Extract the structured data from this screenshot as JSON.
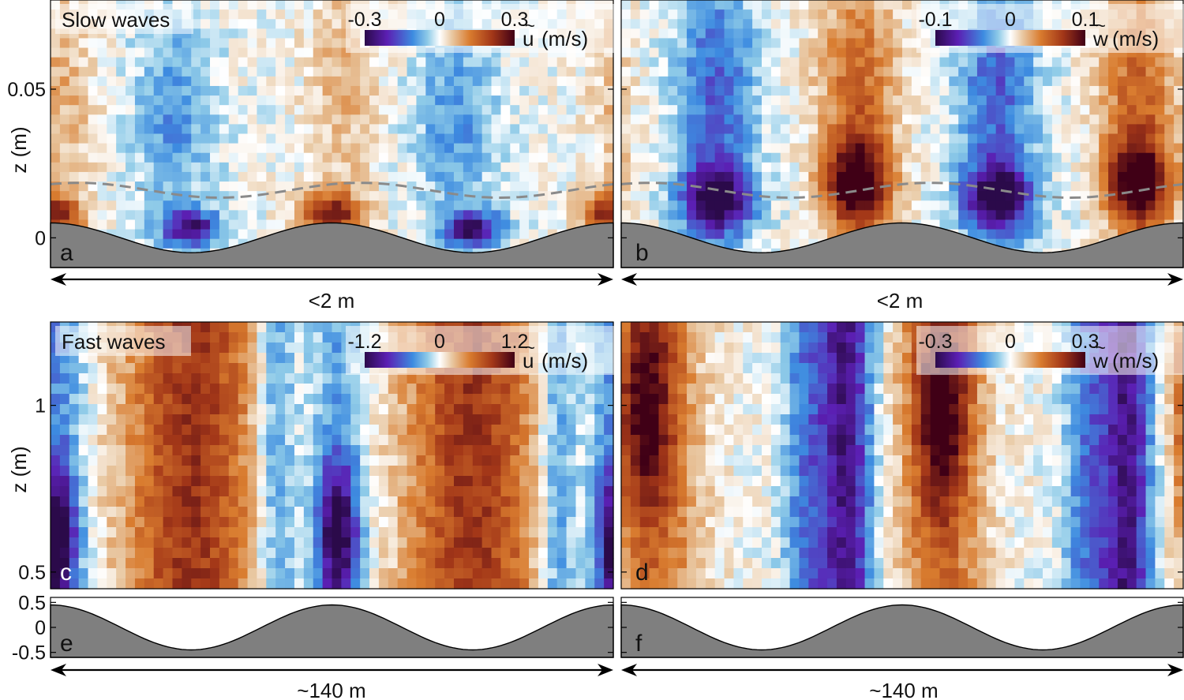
{
  "chart_data": [
    {
      "id": "a",
      "type": "heatmap",
      "panel_label": "a",
      "title": "Slow waves",
      "quantity": "u",
      "colorbar": {
        "min": -0.3,
        "max": 0.3,
        "ticks": [
          "-0.3",
          "0",
          "0.3"
        ],
        "label": "(m/s)"
      },
      "ylabel": "z (m)",
      "ylim": [
        -0.01,
        0.08
      ],
      "yticks": [
        {
          "v": 0,
          "label": "0"
        },
        {
          "v": 0.05,
          "label": "0.05"
        }
      ],
      "xlabel": "<2 m",
      "bed_amplitude": 0.005,
      "bed_phase": 0.0,
      "dashed_line": {
        "base": 0.016,
        "amplitude": 0.0025,
        "phase": 0.05
      },
      "cols": 60,
      "rows": 28,
      "phases": [
        0.0,
        0.05,
        0.5,
        0.55
      ],
      "modes": [
        {
          "phase": 0.0,
          "amp": 0.24,
          "zc": 0.008,
          "w": 0.007,
          "kind": "blob",
          "pw": 0.055
        },
        {
          "phase": 0.5,
          "amp": 0.24,
          "zc": 0.008,
          "w": 0.007,
          "kind": "blob",
          "pw": 0.055
        },
        {
          "phase": 0.25,
          "amp": -0.26,
          "zc": 0.003,
          "w": 0.006,
          "kind": "blob",
          "pw": 0.05
        },
        {
          "phase": 0.75,
          "amp": -0.26,
          "zc": 0.003,
          "w": 0.006,
          "kind": "blob",
          "pw": 0.05
        },
        {
          "phase": 0.22,
          "amp": -0.1,
          "zc": 0.04,
          "w": 0.035,
          "kind": "blob",
          "pw": 0.07
        },
        {
          "phase": 0.72,
          "amp": -0.1,
          "zc": 0.04,
          "w": 0.035,
          "kind": "blob",
          "pw": 0.07
        },
        {
          "phase": 0.02,
          "amp": 0.07,
          "zc": 0.05,
          "w": 0.04,
          "kind": "blob",
          "pw": 0.06
        },
        {
          "phase": 0.52,
          "amp": 0.07,
          "zc": 0.05,
          "w": 0.04,
          "kind": "blob",
          "pw": 0.06
        }
      ]
    },
    {
      "id": "b",
      "type": "heatmap",
      "panel_label": "b",
      "title": "",
      "quantity": "w",
      "colorbar": {
        "min": -0.1,
        "max": 0.1,
        "ticks": [
          "-0.1",
          "0",
          "0.1"
        ],
        "label": "(m/s)"
      },
      "ylabel": "",
      "ylim": [
        -0.01,
        0.08
      ],
      "yticks": [
        {
          "v": 0,
          "label": ""
        },
        {
          "v": 0.05,
          "label": ""
        }
      ],
      "xlabel": "<2 m",
      "bed_amplitude": 0.005,
      "bed_phase": 0.0,
      "dashed_line": {
        "base": 0.016,
        "amplitude": 0.0025,
        "phase": 0.05
      },
      "cols": 60,
      "rows": 28,
      "modes": [
        {
          "phase": 0.17,
          "amp": -0.1,
          "zc": 0.013,
          "w": 0.012,
          "kind": "blob",
          "pw": 0.06
        },
        {
          "phase": 0.67,
          "amp": -0.1,
          "zc": 0.013,
          "w": 0.012,
          "kind": "blob",
          "pw": 0.06
        },
        {
          "phase": 0.42,
          "amp": 0.1,
          "zc": 0.018,
          "w": 0.015,
          "kind": "blob",
          "pw": 0.055
        },
        {
          "phase": 0.92,
          "amp": 0.1,
          "zc": 0.018,
          "w": 0.015,
          "kind": "blob",
          "pw": 0.055
        },
        {
          "phase": 0.17,
          "amp": -0.05,
          "zc": 0.05,
          "w": 0.04,
          "kind": "blob",
          "pw": 0.07
        },
        {
          "phase": 0.67,
          "amp": -0.05,
          "zc": 0.05,
          "w": 0.04,
          "kind": "blob",
          "pw": 0.07
        },
        {
          "phase": 0.42,
          "amp": 0.05,
          "zc": 0.05,
          "w": 0.04,
          "kind": "blob",
          "pw": 0.07
        },
        {
          "phase": 0.92,
          "amp": 0.05,
          "zc": 0.05,
          "w": 0.04,
          "kind": "blob",
          "pw": 0.07
        }
      ]
    },
    {
      "id": "c",
      "type": "heatmap",
      "panel_label": "c",
      "title": "Fast waves",
      "quantity": "u",
      "colorbar": {
        "min": -1.2,
        "max": 1.2,
        "ticks": [
          "-1.2",
          "0",
          "1.2"
        ],
        "label": "(m/s)"
      },
      "ylabel": "z (m)",
      "ylim": [
        0.45,
        1.25
      ],
      "yticks": [
        {
          "v": 0.5,
          "label": "0.5"
        },
        {
          "v": 1,
          "label": "1"
        }
      ],
      "xlabel": "~140 m",
      "cols": 60,
      "rows": 26,
      "modes": [
        {
          "phase": 0.25,
          "amp": 0.85,
          "kind": "band",
          "pw": 0.12
        },
        {
          "phase": 0.75,
          "amp": 0.85,
          "kind": "band",
          "pw": 0.12
        },
        {
          "phase": 0.51,
          "amp": -1.05,
          "kind": "band",
          "pw": 0.035,
          "zc": 0.62,
          "w": 0.2
        },
        {
          "phase": 0.01,
          "amp": -1.1,
          "kind": "band",
          "pw": 0.035,
          "zc": 0.6,
          "w": 0.2
        },
        {
          "phase": 0.51,
          "amp": -0.35,
          "kind": "band",
          "pw": 0.05
        },
        {
          "phase": 0.01,
          "amp": -0.45,
          "kind": "band",
          "pw": 0.05
        },
        {
          "phase": 0.4,
          "amp": -0.45,
          "kind": "band",
          "pw": 0.035
        },
        {
          "phase": 0.9,
          "amp": -0.45,
          "kind": "band",
          "pw": 0.035
        }
      ]
    },
    {
      "id": "d",
      "type": "heatmap",
      "panel_label": "d",
      "title": "",
      "quantity": "w",
      "colorbar": {
        "min": -0.3,
        "max": 0.3,
        "ticks": [
          "-0.3",
          "0",
          "0.3"
        ],
        "label": "(m/s)"
      },
      "ylabel": "",
      "ylim": [
        0.45,
        1.25
      ],
      "yticks": [
        {
          "v": 0.5,
          "label": ""
        },
        {
          "v": 1,
          "label": ""
        }
      ],
      "xlabel": "~140 m",
      "cols": 60,
      "rows": 26,
      "modes": [
        {
          "phase": 0.04,
          "amp": 0.22,
          "kind": "band",
          "pw": 0.05,
          "zc": 1.0,
          "w": 0.35
        },
        {
          "phase": 0.57,
          "amp": 0.22,
          "kind": "band",
          "pw": 0.05,
          "zc": 1.0,
          "w": 0.35
        },
        {
          "phase": 0.07,
          "amp": 0.12,
          "kind": "band",
          "pw": 0.08
        },
        {
          "phase": 0.57,
          "amp": 0.12,
          "kind": "band",
          "pw": 0.08
        },
        {
          "phase": 0.4,
          "amp": -0.25,
          "kind": "band",
          "pw": 0.045
        },
        {
          "phase": 0.9,
          "amp": -0.25,
          "kind": "band",
          "pw": 0.045
        },
        {
          "phase": 0.33,
          "amp": -0.12,
          "kind": "band",
          "pw": 0.04
        },
        {
          "phase": 0.83,
          "amp": -0.12,
          "kind": "band",
          "pw": 0.04
        }
      ]
    },
    {
      "id": "e",
      "type": "area",
      "panel_label": "e",
      "ylabel": "",
      "ylim": [
        -0.6,
        0.6
      ],
      "yticks": [
        {
          "v": 0.5,
          "label": "0.5"
        },
        {
          "v": 0,
          "label": "0"
        },
        {
          "v": -0.5,
          "label": "-0.5"
        }
      ],
      "xlabel": "~140 m",
      "bed_amplitude": 0.45,
      "bed_phase": 0.0
    },
    {
      "id": "f",
      "type": "area",
      "panel_label": "f",
      "ylabel": "",
      "ylim": [
        -0.6,
        0.6
      ],
      "yticks": [
        {
          "v": 0.5,
          "label": ""
        },
        {
          "v": 0,
          "label": ""
        },
        {
          "v": -0.5,
          "label": ""
        }
      ],
      "xlabel": "~140 m",
      "bed_amplitude": 0.45,
      "bed_phase": 0.0
    }
  ]
}
